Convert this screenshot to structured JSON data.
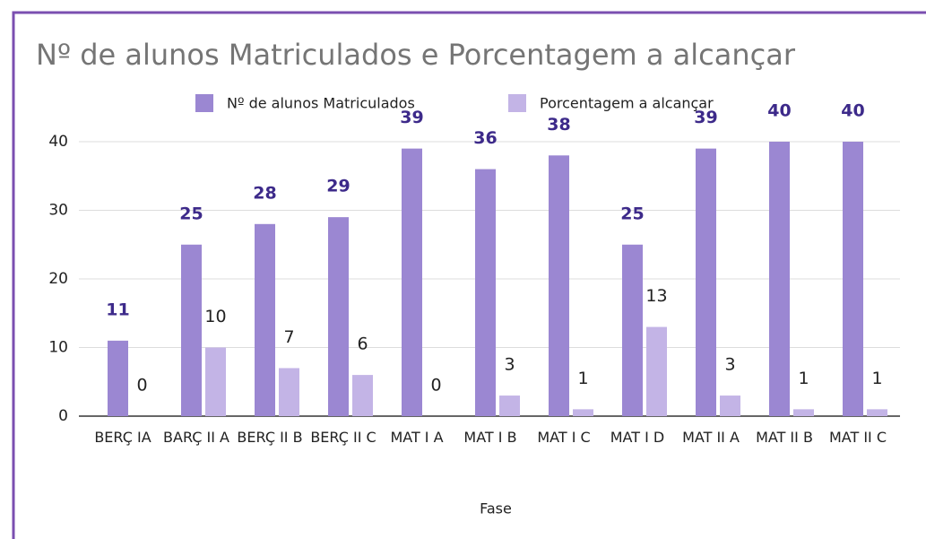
{
  "chart_data": {
    "type": "bar",
    "title": "Nº de alunos Matriculados e Porcentagem a alcançar",
    "x_label": "Fase",
    "categories": [
      "BERÇ IA",
      "BARÇ II A",
      "BERÇ II B",
      "BERÇ II C",
      "MAT I A",
      "MAT I B",
      "MAT I C",
      "MAT I D",
      "MAT II A",
      "MAT II B",
      "MAT II C"
    ],
    "series": [
      {
        "name": "Nº de alunos Matriculados",
        "color": "#9b87d2",
        "values": [
          11,
          25,
          28,
          29,
          39,
          36,
          38,
          25,
          39,
          40,
          40
        ]
      },
      {
        "name": "Porcentagem a alcançar",
        "color": "#c3b4e6",
        "values": [
          0,
          10,
          7,
          6,
          0,
          3,
          1,
          13,
          3,
          1,
          1
        ]
      }
    ],
    "ylim": [
      0,
      40
    ],
    "yticks": [
      0,
      10,
      20,
      30,
      40
    ],
    "grid": true,
    "legend": "top"
  }
}
